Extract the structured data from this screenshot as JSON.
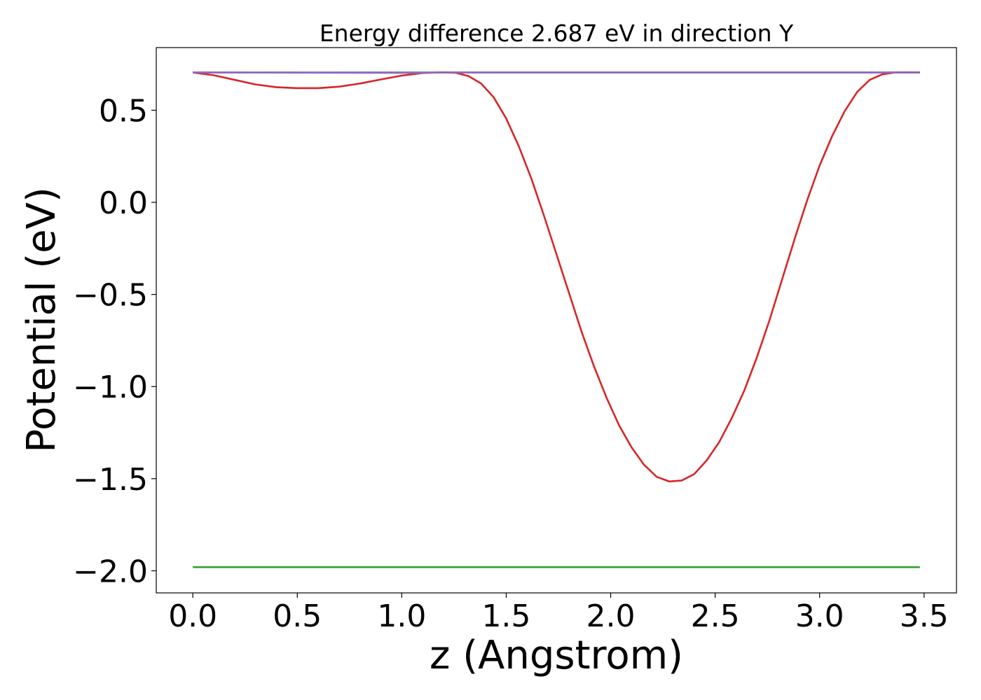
{
  "chart_data": {
    "type": "line",
    "title": "Energy difference 2.687 eV in direction Y",
    "xlabel": "z (Angstrom)",
    "ylabel": "Potential (eV)",
    "xlim": [
      -0.175,
      3.655
    ],
    "ylim": [
      -2.12,
      0.84
    ],
    "xticks": [
      0.0,
      0.5,
      1.0,
      1.5,
      2.0,
      2.5,
      3.0,
      3.5
    ],
    "xtick_labels": [
      "0.0",
      "0.5",
      "1.0",
      "1.5",
      "2.0",
      "2.5",
      "3.0",
      "3.5"
    ],
    "yticks": [
      0.5,
      0.0,
      -0.5,
      -1.0,
      -1.5,
      -2.0
    ],
    "ytick_labels": [
      "0.5",
      "0.0",
      "−0.5",
      "−1.0",
      "−1.5",
      "−2.0"
    ],
    "grid": false,
    "series": [
      {
        "color": "#1f77b4",
        "x": [
          0.0,
          3.48
        ],
        "y": [
          0.705,
          0.705
        ]
      },
      {
        "color": "#2ca02c",
        "x": [
          0.0,
          3.48
        ],
        "y": [
          -1.98,
          -1.98
        ]
      },
      {
        "color": "#d62728",
        "x": [
          0.0,
          0.1,
          0.2,
          0.3,
          0.4,
          0.5,
          0.6,
          0.7,
          0.8,
          0.9,
          1.0,
          1.1,
          1.2,
          1.26,
          1.32,
          1.38,
          1.44,
          1.5,
          1.56,
          1.62,
          1.68,
          1.74,
          1.8,
          1.86,
          1.92,
          1.98,
          2.04,
          2.1,
          2.16,
          2.22,
          2.28,
          2.34,
          2.4,
          2.46,
          2.52,
          2.58,
          2.64,
          2.7,
          2.76,
          2.82,
          2.88,
          2.94,
          3.0,
          3.06,
          3.12,
          3.18,
          3.24,
          3.3,
          3.36,
          3.42,
          3.48
        ],
        "y": [
          0.705,
          0.69,
          0.665,
          0.64,
          0.625,
          0.62,
          0.62,
          0.628,
          0.645,
          0.667,
          0.688,
          0.702,
          0.706,
          0.703,
          0.685,
          0.645,
          0.57,
          0.455,
          0.305,
          0.13,
          -0.07,
          -0.28,
          -0.49,
          -0.7,
          -0.89,
          -1.06,
          -1.21,
          -1.33,
          -1.425,
          -1.49,
          -1.515,
          -1.51,
          -1.475,
          -1.4,
          -1.3,
          -1.17,
          -1.02,
          -0.84,
          -0.64,
          -0.42,
          -0.2,
          0.01,
          0.2,
          0.36,
          0.495,
          0.6,
          0.665,
          0.695,
          0.705,
          0.706,
          0.705
        ]
      },
      {
        "color": "#9467bd",
        "x": [
          0.0,
          1.1,
          1.16,
          1.22,
          1.28,
          3.48
        ],
        "y": [
          0.705,
          0.703,
          0.705,
          0.706,
          0.705,
          0.705
        ]
      }
    ]
  }
}
